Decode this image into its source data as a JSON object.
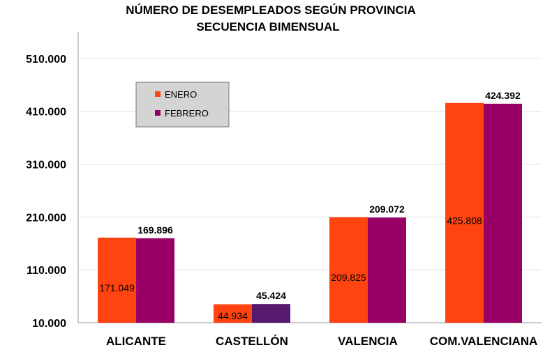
{
  "chart_data": {
    "type": "bar",
    "title": "NÚMERO DE DESEMPLEADOS SEGÚN PROVINCIA",
    "subtitle": "SECUENCIA BIMENSUAL",
    "xlabel": "",
    "ylabel": "",
    "categories": [
      "ALICANTE",
      "CASTELLÓN",
      "VALENCIA",
      "COM.VALENCIANA"
    ],
    "series": [
      {
        "name": "ENERO",
        "color": "#ff4411",
        "values": [
          171049,
          44934,
          209825,
          425808
        ],
        "labels": [
          "171.049",
          "44.934",
          "209.825",
          "425.808"
        ]
      },
      {
        "name": "FEBRERO",
        "color": "#990066",
        "values": [
          169896,
          45424,
          209072,
          424392
        ],
        "labels": [
          "169.896",
          "45.424",
          "209.072",
          "424.392"
        ]
      }
    ],
    "special_bar_colors": {
      "FEBRERO.CASTELLÓN": "#551a6e"
    },
    "ylim": [
      10000,
      560000
    ],
    "yticks": [
      10000,
      110000,
      210000,
      310000,
      410000,
      510000
    ],
    "ytick_labels": [
      "10.000",
      "110.000",
      "210.000",
      "310.000",
      "410.000",
      "510.000"
    ],
    "grid": true,
    "legend_position": "top-left",
    "plot_background": "#ffffff",
    "grid_color": "#e0e0e0",
    "legend_background": "#d4d4d4"
  }
}
